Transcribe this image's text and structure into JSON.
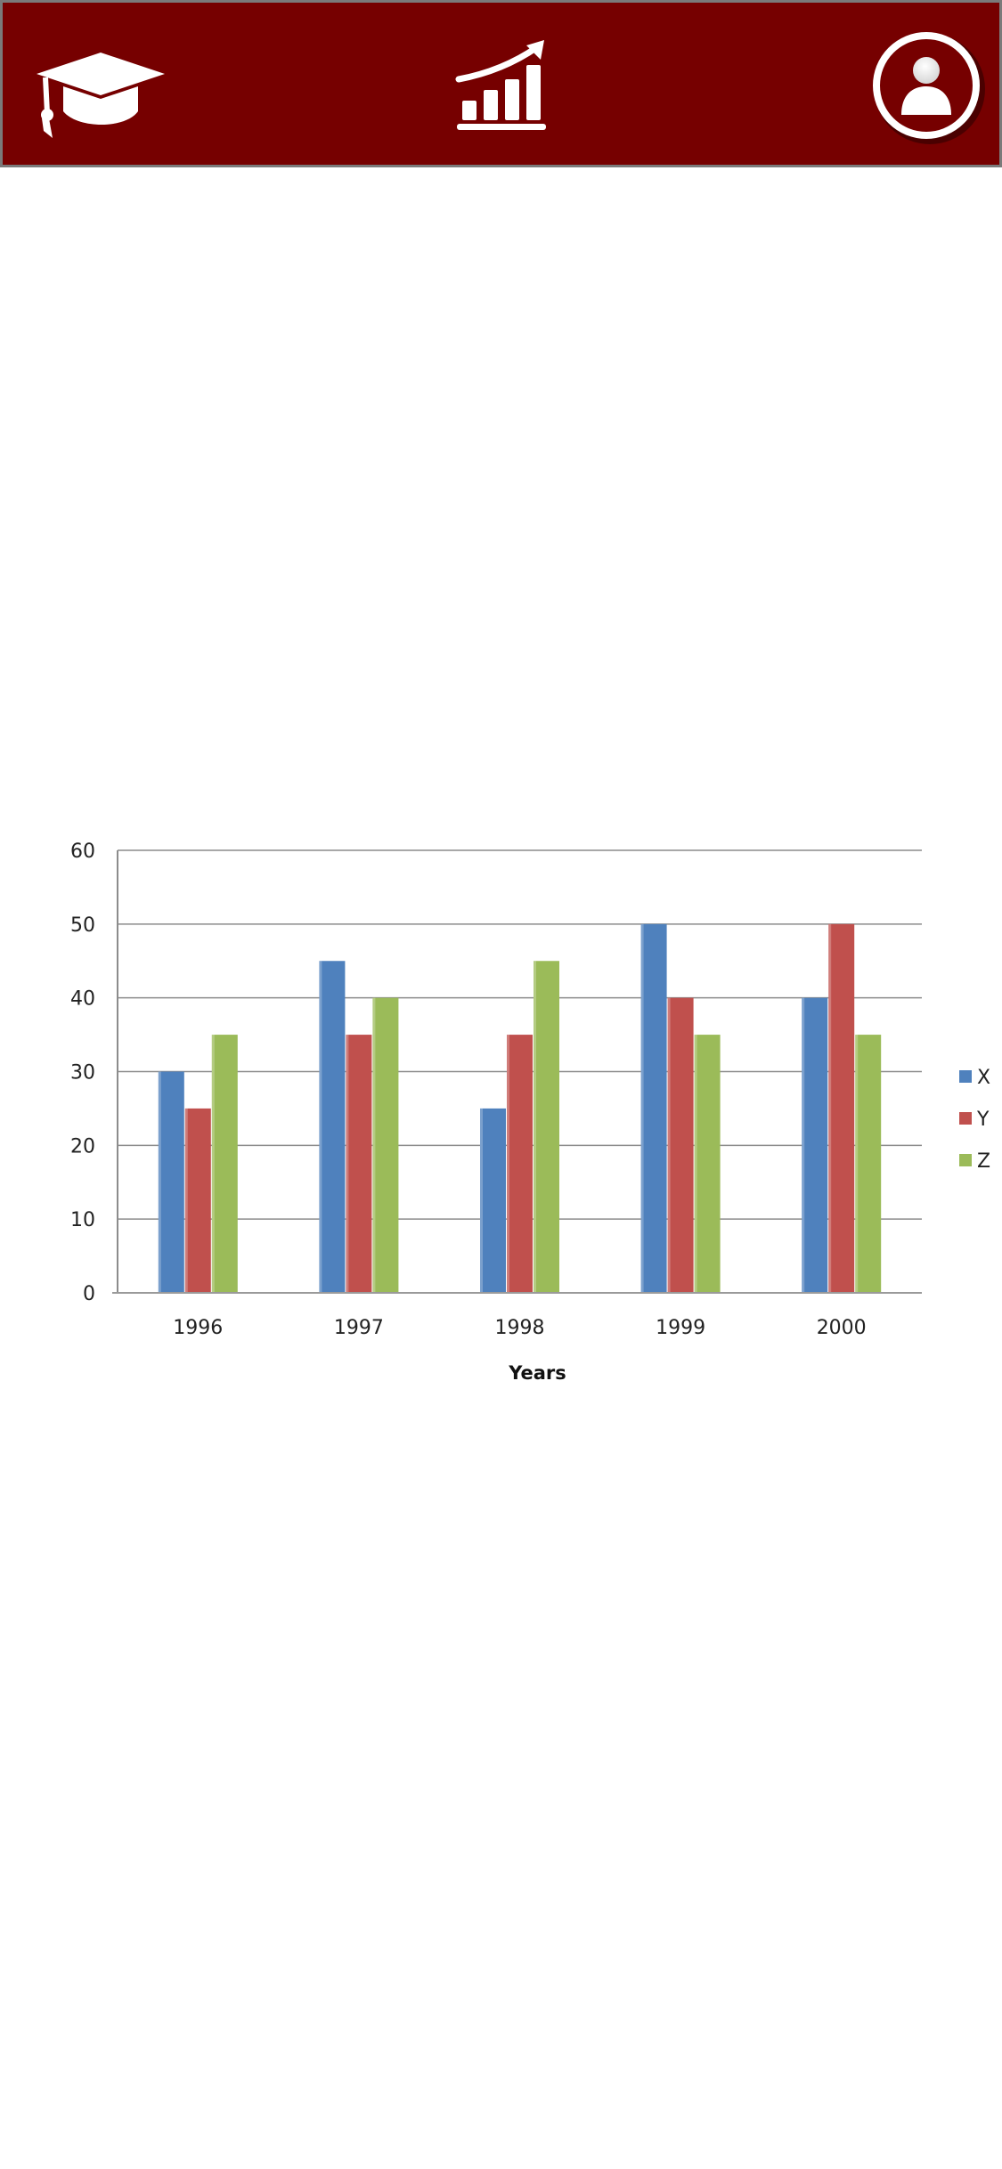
{
  "header": {
    "left_icon": "graduation-cap-icon",
    "center_icon": "growth-chart-icon",
    "right_icon": "profile-avatar-icon",
    "background_color": "#760000",
    "icon_color": "#ffffff"
  },
  "chart_data": {
    "type": "bar",
    "categories": [
      "1996",
      "1997",
      "1998",
      "1999",
      "2000"
    ],
    "series": [
      {
        "name": "X",
        "values": [
          30,
          45,
          25,
          50,
          40
        ],
        "color": "#4f81bd"
      },
      {
        "name": "Y",
        "values": [
          25,
          35,
          35,
          40,
          50
        ],
        "color": "#c0504d"
      },
      {
        "name": "Z",
        "values": [
          35,
          40,
          45,
          35,
          35
        ],
        "color": "#9bbb59"
      }
    ],
    "xlabel": "Years",
    "ylabel": "",
    "ylim": [
      0,
      60
    ],
    "yticks": [
      "0",
      "10",
      "20",
      "30",
      "40",
      "50",
      "60"
    ],
    "grid": true,
    "legend_position": "right"
  }
}
